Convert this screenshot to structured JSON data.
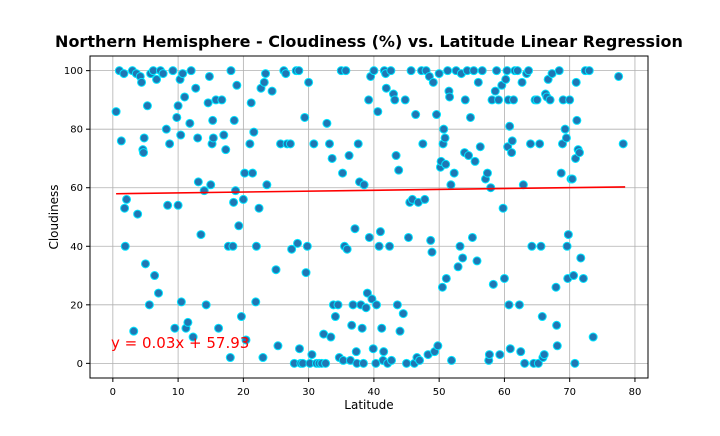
{
  "chart_data": {
    "type": "scatter",
    "title": "Northern Hemisphere - Cloudiness (%) vs. Latitude Linear Regression",
    "xlabel": "Latitude",
    "ylabel": "Cloudiness",
    "xlim": [
      -3.5,
      82
    ],
    "ylim": [
      -5,
      105
    ],
    "xticks": [
      0,
      10,
      20,
      30,
      40,
      50,
      60,
      70,
      80
    ],
    "yticks": [
      0,
      20,
      40,
      60,
      80,
      100
    ],
    "grid": true,
    "regression": {
      "equation": "y = 0.03x + 57.93",
      "slope": 0.03,
      "intercept": 57.93,
      "x_range": [
        0.5,
        78.5
      ],
      "color": "#ff0000"
    },
    "point_style": {
      "fill": "#1f77b4",
      "edge": "#00e5ff"
    },
    "points": [
      [
        0.5,
        86
      ],
      [
        1,
        100
      ],
      [
        1.3,
        76
      ],
      [
        1.7,
        99
      ],
      [
        1.8,
        53
      ],
      [
        2.1,
        56
      ],
      [
        1.9,
        40
      ],
      [
        3,
        100
      ],
      [
        3.2,
        11
      ],
      [
        3.6,
        99
      ],
      [
        3.8,
        51
      ],
      [
        4.2,
        98
      ],
      [
        4.4,
        96
      ],
      [
        4.6,
        73
      ],
      [
        4.7,
        72
      ],
      [
        4.8,
        77
      ],
      [
        5,
        34
      ],
      [
        5.3,
        88
      ],
      [
        5.6,
        20
      ],
      [
        5.8,
        99
      ],
      [
        6.2,
        100
      ],
      [
        6.4,
        30
      ],
      [
        6.7,
        97
      ],
      [
        7,
        24
      ],
      [
        7.3,
        100
      ],
      [
        7.7,
        99
      ],
      [
        8.2,
        80
      ],
      [
        8.4,
        54
      ],
      [
        8.7,
        75
      ],
      [
        9.2,
        100
      ],
      [
        9.5,
        12
      ],
      [
        9.8,
        84
      ],
      [
        10,
        88
      ],
      [
        10,
        54
      ],
      [
        10.3,
        97
      ],
      [
        10.4,
        78
      ],
      [
        10.5,
        21
      ],
      [
        10.7,
        99
      ],
      [
        11,
        91
      ],
      [
        11.2,
        12
      ],
      [
        11.5,
        14
      ],
      [
        11.8,
        82
      ],
      [
        12,
        100
      ],
      [
        12.3,
        9
      ],
      [
        12.7,
        94
      ],
      [
        13,
        77
      ],
      [
        13.1,
        62
      ],
      [
        13.5,
        44
      ],
      [
        14,
        59
      ],
      [
        14.3,
        20
      ],
      [
        14.6,
        89
      ],
      [
        14.8,
        98
      ],
      [
        15,
        61
      ],
      [
        15.2,
        75
      ],
      [
        15.3,
        83
      ],
      [
        15.4,
        77
      ],
      [
        15.8,
        90
      ],
      [
        16.2,
        12
      ],
      [
        16.7,
        90
      ],
      [
        17,
        78
      ],
      [
        17.3,
        73
      ],
      [
        17.7,
        40
      ],
      [
        18,
        2
      ],
      [
        18.1,
        100
      ],
      [
        18.4,
        40
      ],
      [
        18.5,
        55
      ],
      [
        18.6,
        83
      ],
      [
        18.8,
        59
      ],
      [
        19,
        95
      ],
      [
        19.3,
        47
      ],
      [
        19.7,
        16
      ],
      [
        20,
        56
      ],
      [
        20.2,
        65
      ],
      [
        20.4,
        8
      ],
      [
        21,
        75
      ],
      [
        21.2,
        89
      ],
      [
        21.4,
        65
      ],
      [
        21.6,
        79
      ],
      [
        21.9,
        21
      ],
      [
        22,
        40
      ],
      [
        22.4,
        53
      ],
      [
        22.7,
        94
      ],
      [
        23,
        2
      ],
      [
        23.2,
        96
      ],
      [
        23.4,
        99
      ],
      [
        23.6,
        61
      ],
      [
        24.4,
        93
      ],
      [
        25,
        32
      ],
      [
        25.3,
        6
      ],
      [
        25.7,
        75
      ],
      [
        26.2,
        100
      ],
      [
        26.5,
        99
      ],
      [
        26.7,
        75
      ],
      [
        27.2,
        75
      ],
      [
        27.4,
        39
      ],
      [
        27.8,
        0
      ],
      [
        28.1,
        100
      ],
      [
        28.3,
        41
      ],
      [
        28.5,
        100
      ],
      [
        28.6,
        5
      ],
      [
        28.8,
        0
      ],
      [
        29.1,
        0
      ],
      [
        29.4,
        84
      ],
      [
        29.6,
        31
      ],
      [
        29.8,
        40
      ],
      [
        30,
        96
      ],
      [
        30.2,
        0
      ],
      [
        30.5,
        3
      ],
      [
        30.8,
        75
      ],
      [
        31.2,
        0
      ],
      [
        31.6,
        0
      ],
      [
        32,
        0
      ],
      [
        32.3,
        10
      ],
      [
        32.6,
        0
      ],
      [
        32.8,
        82
      ],
      [
        33.2,
        75
      ],
      [
        33.4,
        9
      ],
      [
        33.6,
        70
      ],
      [
        33.8,
        20
      ],
      [
        34.1,
        16
      ],
      [
        34.5,
        20
      ],
      [
        34.7,
        2
      ],
      [
        35,
        100
      ],
      [
        35.2,
        65
      ],
      [
        35.3,
        1
      ],
      [
        35.5,
        40
      ],
      [
        35.7,
        100
      ],
      [
        35.9,
        39
      ],
      [
        36.2,
        71
      ],
      [
        36.4,
        1
      ],
      [
        36.6,
        13
      ],
      [
        36.8,
        20
      ],
      [
        37.1,
        46
      ],
      [
        37.3,
        4
      ],
      [
        37.4,
        0
      ],
      [
        37.6,
        75
      ],
      [
        37.8,
        62
      ],
      [
        38,
        20
      ],
      [
        38.2,
        12
      ],
      [
        38.4,
        0
      ],
      [
        38.5,
        61
      ],
      [
        38.8,
        19
      ],
      [
        39,
        24
      ],
      [
        39.2,
        90
      ],
      [
        39.3,
        43
      ],
      [
        39.5,
        98
      ],
      [
        39.7,
        22
      ],
      [
        39.9,
        5
      ],
      [
        40,
        100
      ],
      [
        40.3,
        0
      ],
      [
        40.4,
        20
      ],
      [
        40.6,
        86
      ],
      [
        40.8,
        40
      ],
      [
        41,
        45
      ],
      [
        41.2,
        12
      ],
      [
        41.4,
        1
      ],
      [
        41.5,
        4
      ],
      [
        41.6,
        100
      ],
      [
        41.8,
        99
      ],
      [
        41.9,
        94
      ],
      [
        42.1,
        0
      ],
      [
        42.4,
        40
      ],
      [
        42.6,
        100
      ],
      [
        42.7,
        1
      ],
      [
        43,
        92
      ],
      [
        43.2,
        90
      ],
      [
        43.4,
        71
      ],
      [
        43.6,
        20
      ],
      [
        43.8,
        66
      ],
      [
        44,
        11
      ],
      [
        44.5,
        17
      ],
      [
        44.8,
        90
      ],
      [
        45,
        0
      ],
      [
        45.3,
        43
      ],
      [
        45.5,
        55
      ],
      [
        45.7,
        100
      ],
      [
        45.9,
        56
      ],
      [
        46.2,
        0
      ],
      [
        46.4,
        85
      ],
      [
        46.6,
        2
      ],
      [
        46.8,
        55
      ],
      [
        47,
        1
      ],
      [
        47.3,
        100
      ],
      [
        47.5,
        75
      ],
      [
        47.8,
        56
      ],
      [
        48,
        100
      ],
      [
        48.3,
        3
      ],
      [
        48.5,
        98
      ],
      [
        48.7,
        42
      ],
      [
        48.9,
        38
      ],
      [
        49.1,
        96
      ],
      [
        49.3,
        4
      ],
      [
        49.6,
        85
      ],
      [
        49.8,
        6
      ],
      [
        50,
        99
      ],
      [
        50.2,
        67
      ],
      [
        50.3,
        69
      ],
      [
        50.5,
        26
      ],
      [
        50.6,
        75
      ],
      [
        50.7,
        80
      ],
      [
        50.9,
        77
      ],
      [
        51,
        68
      ],
      [
        51.1,
        29
      ],
      [
        51.3,
        100
      ],
      [
        51.5,
        93
      ],
      [
        51.6,
        91
      ],
      [
        51.8,
        61
      ],
      [
        51.9,
        1
      ],
      [
        52.3,
        65
      ],
      [
        52.6,
        100
      ],
      [
        52.9,
        33
      ],
      [
        53.2,
        40
      ],
      [
        53.4,
        99
      ],
      [
        53.6,
        36
      ],
      [
        53.9,
        72
      ],
      [
        54,
        90
      ],
      [
        54.3,
        100
      ],
      [
        54.5,
        71
      ],
      [
        54.8,
        84
      ],
      [
        55.1,
        43
      ],
      [
        55.3,
        100
      ],
      [
        55.5,
        69
      ],
      [
        55.8,
        35
      ],
      [
        56,
        96
      ],
      [
        56.3,
        74
      ],
      [
        56.6,
        100
      ],
      [
        57.1,
        63
      ],
      [
        57.4,
        65
      ],
      [
        57.6,
        1
      ],
      [
        57.7,
        3
      ],
      [
        57.9,
        60
      ],
      [
        58.1,
        90
      ],
      [
        58.3,
        27
      ],
      [
        58.6,
        93
      ],
      [
        58.8,
        100
      ],
      [
        59.1,
        90
      ],
      [
        59.3,
        3
      ],
      [
        59.6,
        95
      ],
      [
        59.8,
        53
      ],
      [
        60,
        29
      ],
      [
        60.2,
        97
      ],
      [
        60.4,
        100
      ],
      [
        60.5,
        74
      ],
      [
        60.6,
        90
      ],
      [
        60.7,
        20
      ],
      [
        60.8,
        81
      ],
      [
        60.9,
        5
      ],
      [
        61.1,
        72
      ],
      [
        61.2,
        76
      ],
      [
        61.4,
        90
      ],
      [
        61.6,
        100
      ],
      [
        62,
        100
      ],
      [
        62.3,
        20
      ],
      [
        62.5,
        4
      ],
      [
        62.7,
        96
      ],
      [
        62.9,
        61
      ],
      [
        63.1,
        0
      ],
      [
        63.4,
        99
      ],
      [
        63.7,
        100
      ],
      [
        64,
        75
      ],
      [
        64.2,
        40
      ],
      [
        64.5,
        0
      ],
      [
        64.7,
        90
      ],
      [
        65,
        90
      ],
      [
        65.2,
        0
      ],
      [
        65.4,
        75
      ],
      [
        65.6,
        40
      ],
      [
        65.8,
        16
      ],
      [
        65.9,
        2
      ],
      [
        66.1,
        3
      ],
      [
        66.3,
        92
      ],
      [
        66.5,
        91
      ],
      [
        66.7,
        97
      ],
      [
        67,
        90
      ],
      [
        67.3,
        99
      ],
      [
        67.9,
        26
      ],
      [
        68,
        13
      ],
      [
        68.1,
        6
      ],
      [
        68.4,
        100
      ],
      [
        68.7,
        65
      ],
      [
        68.9,
        75
      ],
      [
        69,
        90
      ],
      [
        69.3,
        80
      ],
      [
        69.5,
        77
      ],
      [
        69.6,
        40
      ],
      [
        69.7,
        29
      ],
      [
        69.8,
        44
      ],
      [
        70,
        90
      ],
      [
        70.2,
        63
      ],
      [
        70.4,
        63
      ],
      [
        70.6,
        30
      ],
      [
        70.8,
        0
      ],
      [
        70.9,
        70
      ],
      [
        71,
        96
      ],
      [
        71.1,
        83
      ],
      [
        71.3,
        73
      ],
      [
        71.5,
        72
      ],
      [
        71.7,
        36
      ],
      [
        72.1,
        29
      ],
      [
        72.4,
        100
      ],
      [
        73,
        100
      ],
      [
        73.6,
        9
      ],
      [
        77.5,
        98
      ],
      [
        78.2,
        75
      ]
    ]
  }
}
